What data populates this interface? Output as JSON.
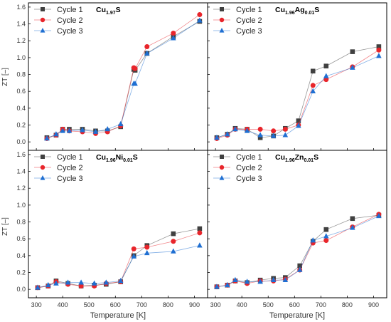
{
  "figure": {
    "ylabel": "ZT [–]",
    "xlabel": "Temperature [K]"
  },
  "legend": [
    {
      "name": "Cycle 1",
      "color": "#404040",
      "marker": "square"
    },
    {
      "name": "Cycle 2",
      "color": "#e8252b",
      "marker": "circle"
    },
    {
      "name": "Cycle 3",
      "color": "#1f6fd2",
      "marker": "triangle"
    }
  ],
  "chart_data": [
    {
      "type": "line",
      "title": {
        "base": "Cu",
        "sub": "1.97",
        "tail": "S"
      },
      "xlim": [
        270,
        950
      ],
      "ylim": [
        -0.1,
        1.65
      ],
      "xticks": [
        300,
        400,
        500,
        600,
        700,
        800,
        900
      ],
      "yticks": [
        0.0,
        0.2,
        0.4,
        0.6,
        0.8,
        1.0,
        1.2,
        1.4,
        1.6
      ],
      "grid": false,
      "legend_position": "top-left",
      "x": [
        340,
        375,
        400,
        425,
        475,
        525,
        570,
        620,
        670,
        675,
        720,
        820,
        920
      ],
      "series": [
        {
          "name": "Cycle 1",
          "values": [
            0.05,
            0.08,
            0.15,
            0.15,
            0.15,
            0.13,
            0.13,
            0.18,
            0.86,
            0.85,
            1.05,
            1.25,
            1.43
          ]
        },
        {
          "name": "Cycle 2",
          "values": [
            0.04,
            0.08,
            0.15,
            0.13,
            0.12,
            0.1,
            0.12,
            0.19,
            0.88,
            0.87,
            1.13,
            1.29,
            1.51
          ]
        },
        {
          "name": "Cycle 3",
          "values": [
            0.04,
            0.09,
            0.13,
            0.13,
            0.14,
            0.12,
            0.15,
            0.21,
            0.69,
            0.69,
            1.05,
            1.23,
            1.44
          ]
        }
      ]
    },
    {
      "type": "line",
      "title": {
        "base": "Cu",
        "sub": "1.96",
        "mid": "Ag",
        "sub2": "0.01",
        "tail": "S"
      },
      "xlim": [
        270,
        950
      ],
      "ylim": [
        -0.1,
        1.65
      ],
      "xticks": [
        300,
        400,
        500,
        600,
        700,
        800,
        900
      ],
      "yticks": [
        0.0,
        0.2,
        0.4,
        0.6,
        0.8,
        1.0,
        1.2,
        1.4,
        1.6
      ],
      "grid": false,
      "legend_position": "top-left",
      "x": [
        305,
        345,
        375,
        420,
        470,
        520,
        565,
        615,
        670,
        720,
        820,
        920
      ],
      "series": [
        {
          "name": "Cycle 1",
          "values": [
            0.05,
            0.09,
            0.16,
            0.15,
            0.05,
            0.07,
            0.16,
            0.25,
            0.84,
            0.9,
            1.07,
            1.13
          ]
        },
        {
          "name": "Cycle 2",
          "values": [
            0.04,
            0.08,
            0.15,
            0.15,
            0.15,
            0.13,
            0.15,
            0.2,
            0.67,
            0.74,
            0.89,
            1.09
          ]
        },
        {
          "name": "Cycle 3",
          "values": [
            0.05,
            0.09,
            0.15,
            0.13,
            0.08,
            0.07,
            0.08,
            0.19,
            0.6,
            0.78,
            0.88,
            1.02
          ]
        }
      ]
    },
    {
      "type": "line",
      "title": {
        "base": "Cu",
        "sub": "1.96",
        "mid": "Ni",
        "sub2": "0.01",
        "tail": "S"
      },
      "xlim": [
        270,
        950
      ],
      "ylim": [
        -0.1,
        1.65
      ],
      "xticks": [
        300,
        400,
        500,
        600,
        700,
        800,
        900
      ],
      "yticks": [
        0.0,
        0.2,
        0.4,
        0.6,
        0.8,
        1.0,
        1.2,
        1.4,
        1.6
      ],
      "grid": false,
      "legend_position": "top-left",
      "x": [
        305,
        345,
        375,
        420,
        470,
        520,
        565,
        620,
        670,
        720,
        820,
        920
      ],
      "series": [
        {
          "name": "Cycle 1",
          "values": [
            0.02,
            0.04,
            0.1,
            0.07,
            0.04,
            0.05,
            0.06,
            0.09,
            0.4,
            0.52,
            0.66,
            0.72
          ]
        },
        {
          "name": "Cycle 2",
          "values": [
            0.02,
            0.04,
            0.09,
            0.06,
            0.04,
            0.04,
            0.07,
            0.09,
            0.48,
            0.5,
            0.57,
            0.67
          ]
        },
        {
          "name": "Cycle 3",
          "values": [
            0.02,
            0.05,
            0.07,
            0.08,
            0.08,
            0.07,
            0.08,
            0.1,
            0.39,
            0.43,
            0.45,
            0.52
          ]
        }
      ]
    },
    {
      "type": "line",
      "title": {
        "base": "Cu",
        "sub": "1.96",
        "mid": "Zn",
        "sub2": "0.01",
        "tail": "S"
      },
      "xlim": [
        270,
        950
      ],
      "ylim": [
        -0.1,
        1.65
      ],
      "xticks": [
        300,
        400,
        500,
        600,
        700,
        800,
        900
      ],
      "yticks": [
        0.0,
        0.2,
        0.4,
        0.6,
        0.8,
        1.0,
        1.2,
        1.4,
        1.6
      ],
      "grid": false,
      "legend_position": "top-left",
      "x": [
        305,
        345,
        375,
        420,
        470,
        520,
        565,
        620,
        670,
        720,
        820,
        920
      ],
      "series": [
        {
          "name": "Cycle 1",
          "values": [
            0.03,
            0.05,
            0.1,
            0.08,
            0.11,
            0.13,
            0.14,
            0.28,
            0.57,
            0.71,
            0.84,
            0.88
          ]
        },
        {
          "name": "Cycle 2",
          "values": [
            0.03,
            0.05,
            0.1,
            0.07,
            0.1,
            0.1,
            0.12,
            0.23,
            0.55,
            0.58,
            0.74,
            0.89
          ]
        },
        {
          "name": "Cycle 3",
          "values": [
            0.03,
            0.05,
            0.11,
            0.09,
            0.09,
            0.11,
            0.11,
            0.23,
            0.58,
            0.63,
            0.73,
            0.87
          ]
        }
      ]
    }
  ]
}
